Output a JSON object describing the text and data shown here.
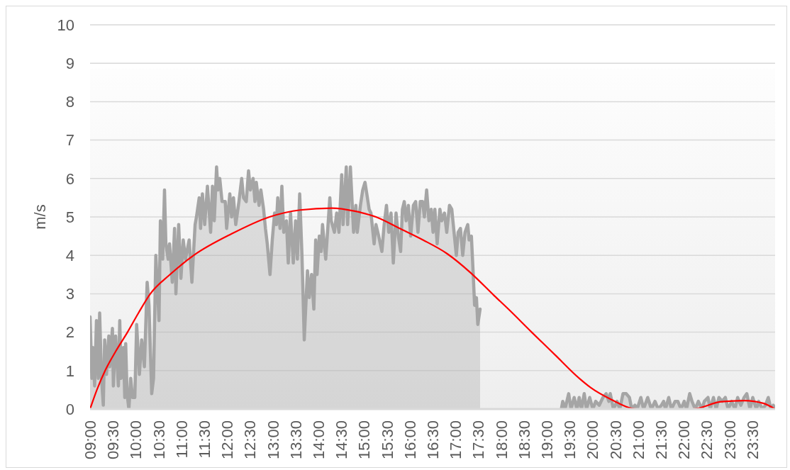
{
  "chart_data": {
    "type": "area",
    "ylabel": "m/s",
    "grid": "y",
    "xlim": [
      9,
      24
    ],
    "ylim": [
      0,
      10
    ],
    "yticks": [
      0,
      1,
      2,
      3,
      4,
      5,
      6,
      7,
      8,
      9,
      10
    ],
    "xticks": [
      {
        "value": 9,
        "label": "09:00"
      },
      {
        "value": 9.5,
        "label": "09:30"
      },
      {
        "value": 10,
        "label": "10:00"
      },
      {
        "value": 10.5,
        "label": "10:30"
      },
      {
        "value": 11,
        "label": "11:00"
      },
      {
        "value": 11.5,
        "label": "11:30"
      },
      {
        "value": 12,
        "label": "12:00"
      },
      {
        "value": 12.5,
        "label": "12:30"
      },
      {
        "value": 13,
        "label": "13:00"
      },
      {
        "value": 13.5,
        "label": "13:30"
      },
      {
        "value": 14,
        "label": "14:00"
      },
      {
        "value": 14.5,
        "label": "14:30"
      },
      {
        "value": 15,
        "label": "15:00"
      },
      {
        "value": 15.5,
        "label": "15:30"
      },
      {
        "value": 16,
        "label": "16:00"
      },
      {
        "value": 16.5,
        "label": "16:30"
      },
      {
        "value": 17,
        "label": "17:00"
      },
      {
        "value": 17.5,
        "label": "17:30"
      },
      {
        "value": 18,
        "label": "18:00"
      },
      {
        "value": 18.5,
        "label": "18:30"
      },
      {
        "value": 19,
        "label": "19:00"
      },
      {
        "value": 19.5,
        "label": "19:30"
      },
      {
        "value": 20,
        "label": "20:00"
      },
      {
        "value": 20.5,
        "label": "20:30"
      },
      {
        "value": 21,
        "label": "21:00"
      },
      {
        "value": 21.5,
        "label": "21:30"
      },
      {
        "value": 22,
        "label": "22:00"
      },
      {
        "value": 22.5,
        "label": "22:30"
      },
      {
        "value": 23,
        "label": "23:00"
      },
      {
        "value": 23.5,
        "label": "23:30"
      }
    ],
    "series": [
      {
        "color": "#a5a5a5",
        "x": [
          9.0,
          9.04,
          9.06,
          9.1,
          9.14,
          9.18,
          9.21,
          9.25,
          9.29,
          9.32,
          9.36,
          9.41,
          9.43,
          9.49,
          9.51,
          9.56,
          9.62,
          9.65,
          9.68,
          9.73,
          9.76,
          9.78,
          9.81,
          9.85,
          9.89,
          9.93,
          9.98,
          10.02,
          10.08,
          10.13,
          10.19,
          10.25,
          10.29,
          10.35,
          10.39,
          10.44,
          10.51,
          10.54,
          10.59,
          10.63,
          10.66,
          10.71,
          10.74,
          10.8,
          10.85,
          10.88,
          10.94,
          10.99,
          11.04,
          11.09,
          11.17,
          11.23,
          11.3,
          11.33,
          11.39,
          11.42,
          11.46,
          11.51,
          11.57,
          11.64,
          11.68,
          11.72,
          11.77,
          11.8,
          11.84,
          11.89,
          11.96,
          11.99,
          12.06,
          12.1,
          12.14,
          12.19,
          12.26,
          12.32,
          12.36,
          12.42,
          12.47,
          12.51,
          12.57,
          12.61,
          12.64,
          12.7,
          12.74,
          12.8,
          12.84,
          12.88,
          12.94,
          12.99,
          13.04,
          13.08,
          13.11,
          13.16,
          13.2,
          13.24,
          13.3,
          13.34,
          13.39,
          13.45,
          13.5,
          13.54,
          13.59,
          13.64,
          13.69,
          13.76,
          13.8,
          13.85,
          13.9,
          13.94,
          13.97,
          14.02,
          14.06,
          14.09,
          14.16,
          14.2,
          14.25,
          14.28,
          14.35,
          14.4,
          14.45,
          14.51,
          14.54,
          14.61,
          14.64,
          14.7,
          14.77,
          14.82,
          14.85,
          14.92,
          14.97,
          15.02,
          15.06,
          15.11,
          15.15,
          15.22,
          15.26,
          15.32,
          15.39,
          15.44,
          15.49,
          15.54,
          15.59,
          15.64,
          15.7,
          15.75,
          15.8,
          15.84,
          15.88,
          15.92,
          15.97,
          16.02,
          16.08,
          16.13,
          16.18,
          16.23,
          16.28,
          16.32,
          16.37,
          16.42,
          16.47,
          16.51,
          16.55,
          16.6,
          16.66,
          16.7,
          16.76,
          16.81,
          16.87,
          16.92,
          16.97,
          17.02,
          17.06,
          17.11,
          17.16,
          17.21,
          17.27,
          17.3,
          17.35,
          17.39,
          17.42,
          17.46,
          17.49,
          17.54,
          18.5,
          19.32,
          19.35,
          19.4,
          19.48,
          19.53,
          19.6,
          19.66,
          19.71,
          19.76,
          19.82,
          19.87,
          19.94,
          20.01,
          20.07,
          20.15,
          20.23,
          20.3,
          20.36,
          20.39,
          20.46,
          20.54,
          20.6,
          20.67,
          20.74,
          20.81,
          20.86,
          20.93,
          20.98,
          21.06,
          21.12,
          21.21,
          21.29,
          21.37,
          21.44,
          21.51,
          21.56,
          21.6,
          21.67,
          21.73,
          21.81,
          21.87,
          21.94,
          22.01,
          22.06,
          22.13,
          22.18,
          22.25,
          22.32,
          22.4,
          22.45,
          22.53,
          22.58,
          22.65,
          22.71,
          22.77,
          22.84,
          22.91,
          22.97,
          23.05,
          23.12,
          23.18,
          23.25,
          23.32,
          23.38,
          23.45,
          23.51,
          23.59,
          23.64,
          23.72,
          23.79,
          23.85,
          23.91,
          23.96,
          23.99
        ],
        "values": [
          2.4,
          0.8,
          1.6,
          0.6,
          2.3,
          0.8,
          2.5,
          0.8,
          0.1,
          1.8,
          0.9,
          1.9,
          1.1,
          2.1,
          0.6,
          1.9,
          0.6,
          2.3,
          0.8,
          1.6,
          0.3,
          1.7,
          0.4,
          0.0,
          0.8,
          0.3,
          0.3,
          2.2,
          0.9,
          1.8,
          1.1,
          3.3,
          2.7,
          0.4,
          0.8,
          4.0,
          2.3,
          4.9,
          3.9,
          5.7,
          4.3,
          3.9,
          4.3,
          3.3,
          4.7,
          3.0,
          4.8,
          3.4,
          4.4,
          3.9,
          4.4,
          3.3,
          4.8,
          5.0,
          5.5,
          4.7,
          5.6,
          4.8,
          5.8,
          4.6,
          5.8,
          4.9,
          6.3,
          5.7,
          6.0,
          5.4,
          5.4,
          4.7,
          5.6,
          5.0,
          5.5,
          4.8,
          5.4,
          6.0,
          5.5,
          5.4,
          6.2,
          5.7,
          6.0,
          5.4,
          5.9,
          5.3,
          5.7,
          5.2,
          4.7,
          4.3,
          3.5,
          4.4,
          5.1,
          4.8,
          5.5,
          4.7,
          5.8,
          4.6,
          4.9,
          3.8,
          5.1,
          3.8,
          4.9,
          3.9,
          5.6,
          4.0,
          1.8,
          3.6,
          2.9,
          3.5,
          2.6,
          4.4,
          3.5,
          4.5,
          4.1,
          4.8,
          3.9,
          4.6,
          5.5,
          4.9,
          4.6,
          5.1,
          4.6,
          6.1,
          4.8,
          6.3,
          4.8,
          6.3,
          4.6,
          5.3,
          4.6,
          5.3,
          5.7,
          5.9,
          5.6,
          5.2,
          5.1,
          4.3,
          4.8,
          4.5,
          4.1,
          4.8,
          5.3,
          4.6,
          5.1,
          3.8,
          5.1,
          4.5,
          4.1,
          5.2,
          5.4,
          4.9,
          5.3,
          4.5,
          5.3,
          5.4,
          4.6,
          5.4,
          5.4,
          5.0,
          5.7,
          4.9,
          5.2,
          4.6,
          5.2,
          4.3,
          5.2,
          4.9,
          5.1,
          4.6,
          5.3,
          5.2,
          4.6,
          4.0,
          4.6,
          4.7,
          4.0,
          4.6,
          4.8,
          4.4,
          4.5,
          3.5,
          2.7,
          2.9,
          2.2,
          2.6,
          null,
          0.0,
          0.2,
          0.0,
          0.4,
          0.0,
          0.3,
          0.0,
          0.3,
          0.0,
          0.4,
          0.0,
          0.3,
          0.0,
          0.2,
          0.1,
          0.3,
          0.4,
          0.2,
          0.4,
          0.0,
          0.2,
          0.0,
          0.4,
          0.4,
          0.3,
          0.0,
          0.1,
          0.0,
          0.3,
          0.0,
          0.3,
          0.0,
          0.2,
          0.0,
          0.1,
          0.2,
          0.0,
          0.3,
          0.0,
          0.2,
          0.2,
          0.0,
          0.2,
          0.0,
          0.4,
          0.2,
          0.0,
          0.2,
          0.0,
          0.2,
          0.3,
          0.0,
          0.3,
          0.0,
          0.3,
          0.2,
          0.3,
          0.0,
          0.2,
          0.0,
          0.3,
          0.1,
          0.3,
          0.4,
          0.0,
          0.3,
          0.0,
          0.2,
          0.0,
          0.1,
          0.3,
          0.0,
          0.1,
          0.0
        ]
      },
      {
        "type": "line",
        "color": "#ff0000",
        "x": [
          9.0,
          9.15,
          9.33,
          9.56,
          9.82,
          10.06,
          10.32,
          10.75,
          11.27,
          12.1,
          12.93,
          13.6,
          14.3,
          14.8,
          15.26,
          15.78,
          16.29,
          16.81,
          17.33,
          17.85,
          18.16,
          18.67,
          19.19,
          19.71,
          19.97,
          20.49,
          20.74,
          20.98,
          21.6,
          22.19,
          22.82,
          23.33,
          23.74,
          24.0
        ],
        "values": [
          0,
          0.5,
          1.0,
          1.5,
          2.0,
          2.5,
          3.0,
          3.5,
          4.0,
          4.56,
          5.0,
          5.18,
          5.23,
          5.15,
          5.0,
          4.7,
          4.4,
          4.05,
          3.55,
          2.95,
          2.6,
          2.0,
          1.4,
          0.8,
          0.55,
          0.2,
          0.06,
          0,
          null,
          0,
          0.19,
          0.22,
          0.15,
          0
        ]
      }
    ]
  }
}
